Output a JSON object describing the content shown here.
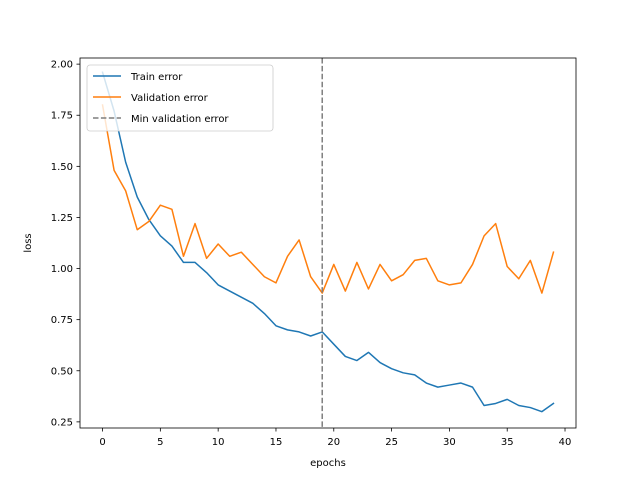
{
  "chart_data": {
    "type": "line",
    "xlabel": "epochs",
    "ylabel": "loss",
    "xlim": [
      -1.95,
      40.95
    ],
    "ylim": [
      0.22,
      2.03
    ],
    "xticks": [
      0,
      5,
      10,
      15,
      20,
      25,
      30,
      35,
      40
    ],
    "yticks": [
      0.25,
      0.5,
      0.75,
      1.0,
      1.25,
      1.5,
      1.75,
      2.0
    ],
    "ytick_labels": [
      "0.25",
      "0.50",
      "0.75",
      "1.00",
      "1.25",
      "1.50",
      "1.75",
      "2.00"
    ],
    "grid": false,
    "legend_position": "top-left",
    "series": [
      {
        "name": "Train error",
        "color": "#1f77b4",
        "x": [
          0,
          1,
          2,
          3,
          4,
          5,
          6,
          7,
          8,
          9,
          10,
          11,
          12,
          13,
          14,
          15,
          16,
          17,
          18,
          19,
          20,
          21,
          22,
          23,
          24,
          25,
          26,
          27,
          28,
          29,
          30,
          31,
          32,
          33,
          34,
          35,
          36,
          37,
          38,
          39
        ],
        "values": [
          1.96,
          1.77,
          1.52,
          1.35,
          1.24,
          1.16,
          1.11,
          1.03,
          1.03,
          0.98,
          0.92,
          0.89,
          0.86,
          0.83,
          0.78,
          0.72,
          0.7,
          0.69,
          0.67,
          0.69,
          0.63,
          0.57,
          0.55,
          0.59,
          0.54,
          0.51,
          0.49,
          0.48,
          0.44,
          0.42,
          0.43,
          0.44,
          0.42,
          0.33,
          0.34,
          0.36,
          0.33,
          0.32,
          0.3,
          0.34
        ]
      },
      {
        "name": "Validation error",
        "color": "#ff7f0e",
        "x": [
          0,
          1,
          2,
          3,
          4,
          5,
          6,
          7,
          8,
          9,
          10,
          11,
          12,
          13,
          14,
          15,
          16,
          17,
          18,
          19,
          20,
          21,
          22,
          23,
          24,
          25,
          26,
          27,
          28,
          29,
          30,
          31,
          32,
          33,
          34,
          35,
          36,
          37,
          38,
          39
        ],
        "values": [
          1.8,
          1.48,
          1.38,
          1.19,
          1.23,
          1.31,
          1.29,
          1.06,
          1.22,
          1.05,
          1.12,
          1.06,
          1.08,
          1.02,
          0.96,
          0.93,
          1.06,
          1.14,
          0.96,
          0.88,
          1.02,
          0.89,
          1.03,
          0.9,
          1.02,
          0.94,
          0.97,
          1.04,
          1.05,
          0.94,
          0.92,
          0.93,
          1.02,
          1.16,
          1.22,
          1.01,
          0.95,
          1.04,
          0.88,
          1.08
        ]
      }
    ],
    "vline": {
      "name": "Min validation error",
      "x": 19,
      "color": "#7f7f7f",
      "style": "dashed"
    }
  }
}
